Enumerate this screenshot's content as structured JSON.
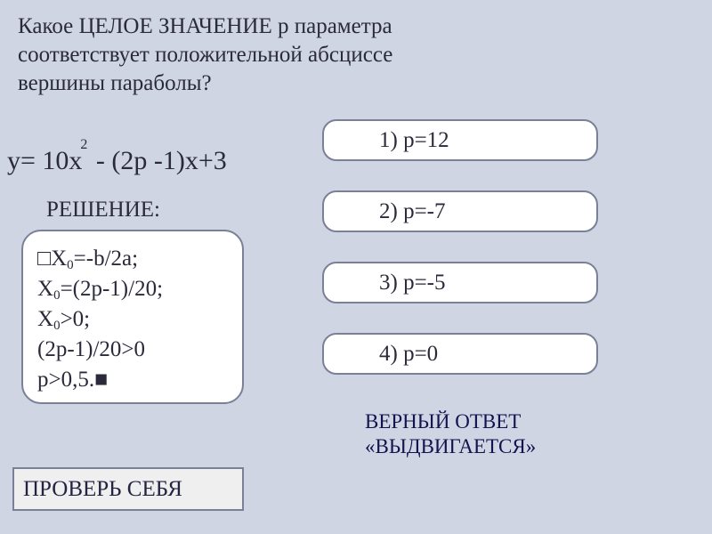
{
  "colors": {
    "page_bg": "#cfd5e2",
    "box_bg": "#ffffff",
    "border": "#7a8096",
    "text": "#2a2a3a",
    "check_bg": "#efefef",
    "note_text": "#13134f"
  },
  "typography": {
    "font_family": "Times New Roman",
    "question_fontsize": 25,
    "equation_fontsize": 30,
    "label_fontsize": 25,
    "solution_fontsize": 25,
    "option_fontsize": 25,
    "note_fontsize": 23
  },
  "question": {
    "line1": " Какое  ЦЕЛОЕ ЗНАЧЕНИЕ p параметра",
    "line2": "соответствует положительной абсциссе",
    "line3": "вершины  параболы?"
  },
  "equation": {
    "prefix": "y= 10x",
    "exponent": "2",
    "suffix": " - (2p -1)x+3"
  },
  "solution_label": "РЕШЕНИЕ:",
  "solution": {
    "line1_prefix": "□X",
    "line1_sub": "0",
    "line1_suffix": "=-b/2a;",
    "line2_prefix": "X",
    "line2_sub": "0",
    "line2_suffix": "=(2p-1)/20;",
    "line3_prefix": "X",
    "line3_sub": "0",
    "line3_suffix": ">0;",
    "line4": "(2p-1)/20>0",
    "line5": "p>0,5.■"
  },
  "options": [
    {
      "id": "opt-1",
      "label": "1) p=12"
    },
    {
      "id": "opt-2",
      "label": "2) p=-7"
    },
    {
      "id": "opt-3",
      "label": "3) p=-5"
    },
    {
      "id": "opt-4",
      "label": "4) p=0"
    }
  ],
  "check_label": "ПРОВЕРЬ СЕБЯ",
  "correct_note": {
    "line1": "ВЕРНЫЙ ОТВЕТ",
    "line2": "«ВЫДВИГАЕТСЯ»"
  }
}
